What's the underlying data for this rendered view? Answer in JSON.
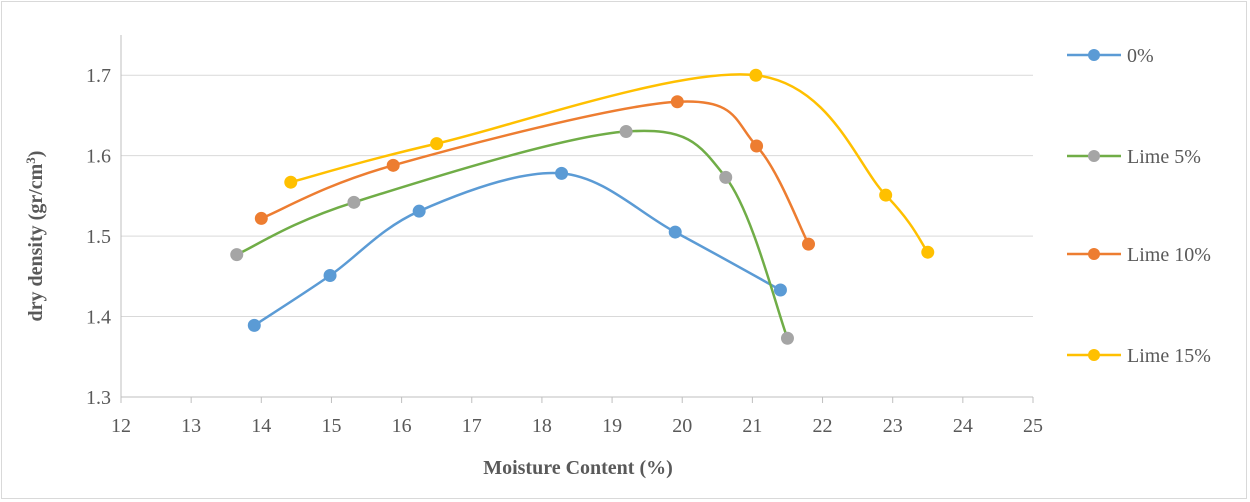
{
  "chart_data": {
    "type": "line",
    "smooth": true,
    "xlabel": "Moisture Content (%)",
    "ylabel_main": "dry density (gr/cm",
    "ylabel_sup": "3",
    "ylabel_close": ")",
    "xlim": [
      12,
      25
    ],
    "ylim": [
      1.3,
      1.75
    ],
    "xticks": [
      "12",
      "13",
      "14",
      "15",
      "16",
      "17",
      "18",
      "19",
      "20",
      "21",
      "22",
      "23",
      "24",
      "25"
    ],
    "yticks": [
      "1.3",
      "1.4",
      "1.5",
      "1.6",
      "1.7"
    ],
    "grid": "horizontal",
    "legend_position": "right",
    "series": [
      {
        "name": "0%",
        "color": "#5b9bd5",
        "x": [
          13.9,
          14.98,
          16.25,
          18.28,
          19.9,
          21.4
        ],
        "y": [
          1.389,
          1.451,
          1.531,
          1.578,
          1.505,
          1.433
        ]
      },
      {
        "name": "Lime 5%",
        "color": "#70ad47",
        "marker_color": "#a5a5a5",
        "x": [
          13.65,
          15.32,
          19.2,
          20.62,
          21.5
        ],
        "y": [
          1.477,
          1.542,
          1.63,
          1.573,
          1.373
        ]
      },
      {
        "name": "Lime 10%",
        "color": "#ed7d31",
        "x": [
          14.0,
          15.88,
          19.93,
          21.06,
          21.8
        ],
        "y": [
          1.522,
          1.588,
          1.667,
          1.612,
          1.49
        ]
      },
      {
        "name": "Lime 15%",
        "color": "#ffc000",
        "x": [
          14.42,
          16.5,
          21.05,
          22.9,
          23.5
        ],
        "y": [
          1.567,
          1.615,
          1.7,
          1.551,
          1.48
        ]
      }
    ]
  }
}
